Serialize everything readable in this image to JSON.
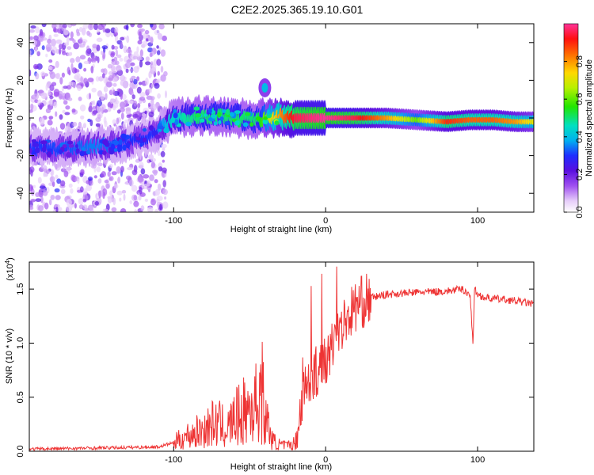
{
  "title": "C2E2.2025.365.19.10.G01",
  "chart_data": [
    {
      "type": "heatmap",
      "xlabel": "Height of straight line (km)",
      "ylabel": "Frequency (Hz)",
      "xlim": [
        -195,
        137
      ],
      "ylim": [
        -50,
        50
      ],
      "xticks": [
        -100,
        0,
        100
      ],
      "xtick_labels": [
        "-100",
        "0",
        "100"
      ],
      "yticks": [
        -40,
        -20,
        0,
        20,
        40
      ],
      "ytick_labels": [
        "-40",
        "-20",
        "0",
        "20",
        "40"
      ],
      "colorbar": {
        "label": "Normalized spectral amplitude",
        "range": [
          0,
          1
        ],
        "ticks": [
          0.0,
          0.2,
          0.4,
          0.6,
          0.8
        ],
        "tick_labels": [
          "0.0",
          "0.2",
          "0.4",
          "0.6",
          "0.8"
        ]
      },
      "ridge": {
        "x": [
          -195,
          -170,
          -150,
          -130,
          -112,
          -100,
          -85,
          -70,
          -55,
          -45,
          -38,
          -30,
          -20,
          -10,
          0,
          20,
          40,
          60,
          80,
          95,
          110,
          125,
          137
        ],
        "freq": [
          -16,
          -16,
          -15,
          -13,
          -8,
          0,
          1,
          1,
          0,
          -1,
          0,
          1,
          0,
          0,
          0,
          0,
          0,
          -1,
          -2,
          -1,
          -1,
          -2,
          -2
        ],
        "amplitude": [
          0.3,
          0.32,
          0.35,
          0.3,
          0.3,
          0.45,
          0.5,
          0.5,
          0.5,
          0.5,
          0.65,
          0.8,
          0.95,
          0.98,
          1.0,
          0.95,
          0.8,
          0.6,
          0.9,
          0.85,
          0.85,
          0.8,
          0.7
        ]
      },
      "feature_patch": {
        "x": -40,
        "freq": 16,
        "amplitude": 0.4
      }
    },
    {
      "type": "line",
      "xlabel": "Height of straight line (km)",
      "ylabel": "SNR (10 * v/v)",
      "y_scale_label": "(x10",
      "y_scale_exp": "4",
      "xlim": [
        -195,
        137
      ],
      "ylim": [
        0,
        1.75
      ],
      "xticks": [
        -100,
        0,
        100
      ],
      "xtick_labels": [
        "-100",
        "0",
        "100"
      ],
      "yticks": [
        0.0,
        0.5,
        1.0,
        1.5
      ],
      "ytick_labels": [
        "0.0",
        "0.5",
        "1.0",
        "1.5"
      ],
      "series": [
        {
          "name": "SNR",
          "color": "#ee3333",
          "x": [
            -195,
            -150,
            -110,
            -100,
            -90,
            -80,
            -75,
            -70,
            -65,
            -60,
            -55,
            -50,
            -45,
            -42,
            -40,
            -38,
            -35,
            -30,
            -25,
            -20,
            -18,
            -15,
            -10,
            -5,
            0,
            5,
            10,
            20,
            30,
            40,
            60,
            80,
            90,
            95,
            97,
            98,
            100,
            105,
            120,
            130,
            137
          ],
          "y": [
            0.02,
            0.03,
            0.04,
            0.08,
            0.15,
            0.2,
            0.25,
            0.25,
            0.2,
            0.3,
            0.35,
            0.4,
            0.45,
            0.6,
            0.3,
            0.25,
            0.1,
            0.06,
            0.05,
            0.08,
            0.25,
            0.55,
            0.7,
            0.75,
            0.85,
            1.0,
            1.15,
            1.35,
            1.42,
            1.45,
            1.47,
            1.48,
            1.5,
            1.45,
            1.0,
            1.5,
            1.45,
            1.42,
            1.4,
            1.38,
            1.36
          ]
        }
      ]
    }
  ],
  "colors": {
    "line": "#ee3333",
    "frame": "#000000",
    "background": "#ffffff"
  }
}
